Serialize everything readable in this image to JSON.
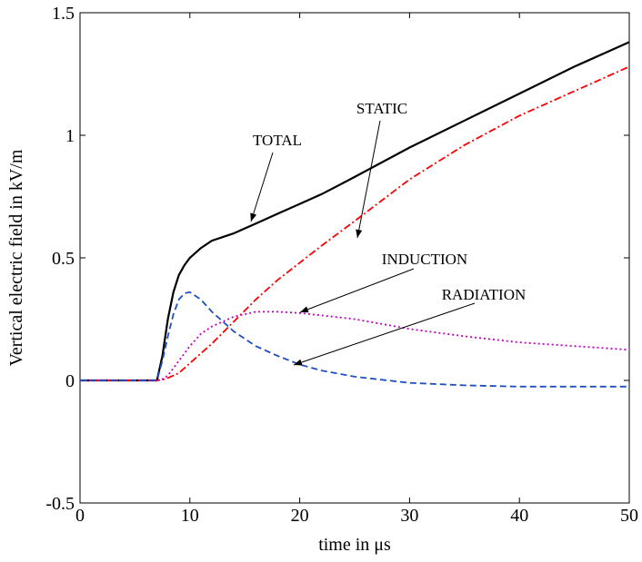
{
  "chart_data": {
    "type": "line",
    "xlabel": "time  in  μs",
    "ylabel": "Vertical electric field  in  kV/m",
    "x": [
      0,
      7,
      7.5,
      8,
      8.5,
      9,
      9.5,
      10,
      11,
      12,
      14,
      16,
      18,
      20,
      22,
      25,
      30,
      35,
      40,
      45,
      50
    ],
    "series": [
      {
        "name": "TOTAL",
        "color": "#000000",
        "style": "solid",
        "values": [
          0,
          0,
          0.1,
          0.25,
          0.36,
          0.43,
          0.47,
          0.5,
          0.54,
          0.57,
          0.6,
          0.64,
          0.68,
          0.72,
          0.76,
          0.83,
          0.95,
          1.06,
          1.17,
          1.28,
          1.38
        ]
      },
      {
        "name": "STATIC",
        "color": "#ff0000",
        "style": "dashdot",
        "values": [
          0,
          0,
          0.003,
          0.01,
          0.02,
          0.03,
          0.05,
          0.07,
          0.11,
          0.15,
          0.24,
          0.33,
          0.41,
          0.48,
          0.55,
          0.65,
          0.82,
          0.96,
          1.08,
          1.18,
          1.28
        ]
      },
      {
        "name": "INDUCTION",
        "color": "#bf00bf",
        "style": "dotted",
        "values": [
          0,
          0,
          0.005,
          0.02,
          0.05,
          0.08,
          0.11,
          0.14,
          0.19,
          0.22,
          0.26,
          0.28,
          0.28,
          0.275,
          0.265,
          0.25,
          0.21,
          0.18,
          0.155,
          0.14,
          0.125
        ]
      },
      {
        "name": "RADIATION",
        "color": "#1f4fbf",
        "style": "dashed",
        "values": [
          0,
          0,
          0.08,
          0.18,
          0.27,
          0.33,
          0.355,
          0.36,
          0.33,
          0.28,
          0.2,
          0.14,
          0.1,
          0.065,
          0.04,
          0.015,
          -0.01,
          -0.02,
          -0.025,
          -0.025,
          -0.025
        ]
      }
    ],
    "xlim": [
      0,
      50
    ],
    "xticks": [
      0,
      10,
      20,
      30,
      40,
      50
    ],
    "ylim": [
      -0.5,
      1.5
    ],
    "yticks": [
      -0.5,
      0,
      0.5,
      1,
      1.5
    ],
    "grid": false
  }
}
